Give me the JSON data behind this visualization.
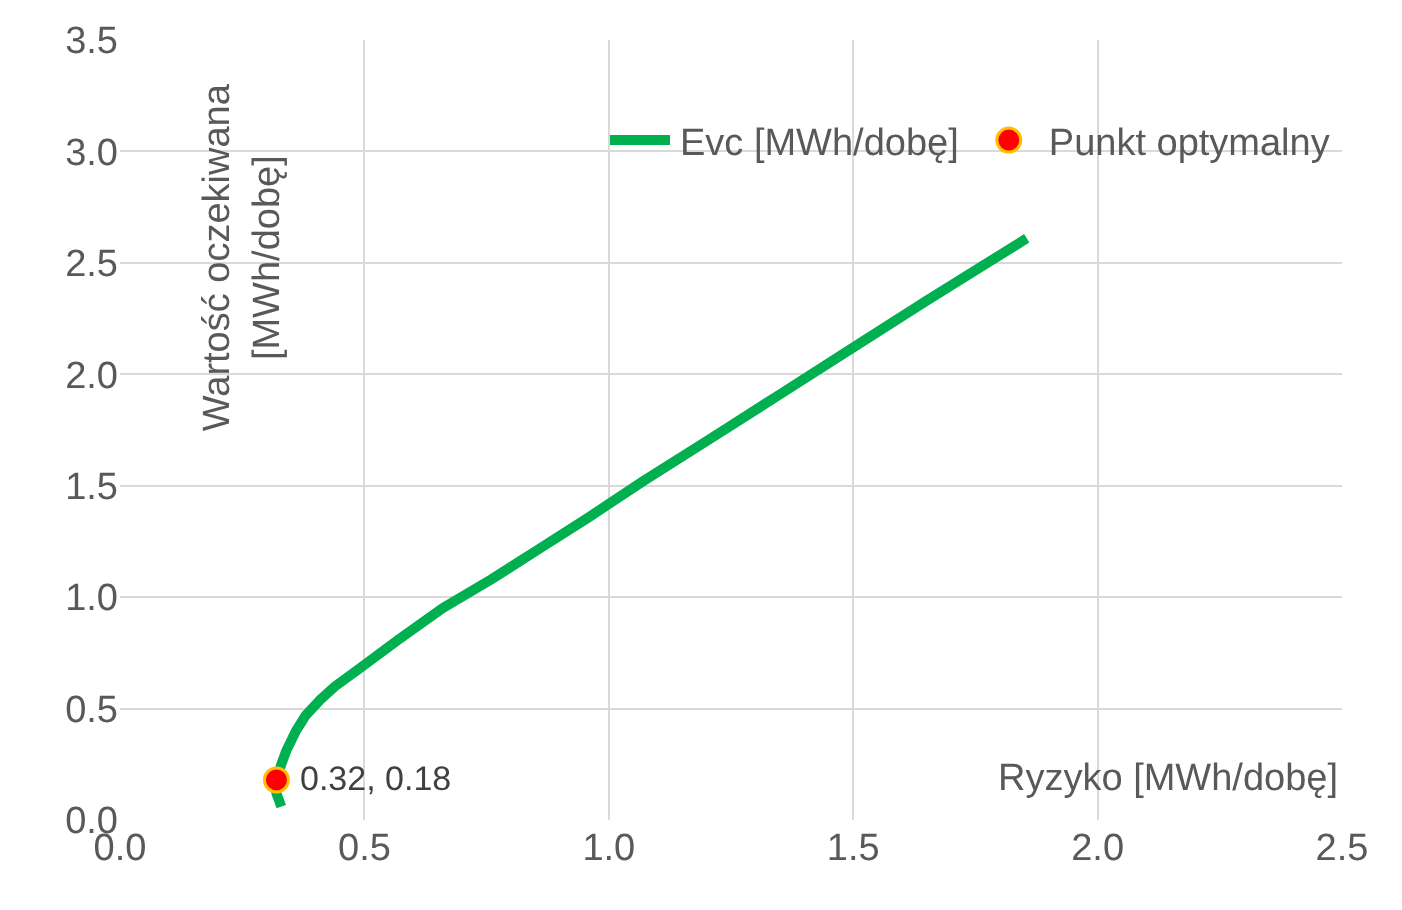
{
  "chart_data": {
    "type": "line",
    "xlabel": "Ryzyko [MWh/dobę]",
    "ylabel": "Wartość oczekiwana [MWh/dobę]",
    "xlim": [
      0,
      2.5
    ],
    "xticks": [
      {
        "value": 0,
        "label": "0.0"
      },
      {
        "value": 0.5,
        "label": "0.5"
      },
      {
        "value": 1,
        "label": "1.0"
      },
      {
        "value": 1.5,
        "label": "1.5"
      },
      {
        "value": 2,
        "label": "2.0"
      },
      {
        "value": 2.5,
        "label": "2.5"
      }
    ],
    "ylim": [
      0,
      3.5
    ],
    "yticks": [
      {
        "value": 0,
        "label": "0.0"
      },
      {
        "value": 0.5,
        "label": "0.5"
      },
      {
        "value": 1,
        "label": "1.0"
      },
      {
        "value": 1.5,
        "label": "1.5"
      },
      {
        "value": 2,
        "label": "2.0"
      },
      {
        "value": 2.5,
        "label": "2.5"
      },
      {
        "value": 3,
        "label": "3.0"
      },
      {
        "value": 3.5,
        "label": "3.5"
      }
    ],
    "grid": true,
    "legend": "top right",
    "series": [
      {
        "name": "Evc [MWh/dobę]",
        "color": "#00b050",
        "x": [
          0.33,
          0.32,
          0.32,
          0.33,
          0.34,
          0.36,
          0.38,
          0.41,
          0.44,
          0.49,
          0.57,
          0.66,
          0.76,
          0.86,
          0.96,
          1.07,
          1.2,
          1.35,
          1.5,
          1.65,
          1.855
        ],
        "values": [
          0.06,
          0.12,
          0.18,
          0.25,
          0.31,
          0.4,
          0.47,
          0.54,
          0.6,
          0.68,
          0.81,
          0.95,
          1.08,
          1.22,
          1.36,
          1.52,
          1.7,
          1.91,
          2.12,
          2.33,
          2.61
        ]
      },
      {
        "name": "Punkt optymalny",
        "type": "scatter",
        "marker": "circle",
        "color": "#ff0000",
        "x": [
          0.32
        ],
        "values": [
          0.18
        ]
      }
    ],
    "annotations": [
      {
        "text": "0.32, 0.18",
        "x": 0.32,
        "y": 0.18
      }
    ]
  }
}
